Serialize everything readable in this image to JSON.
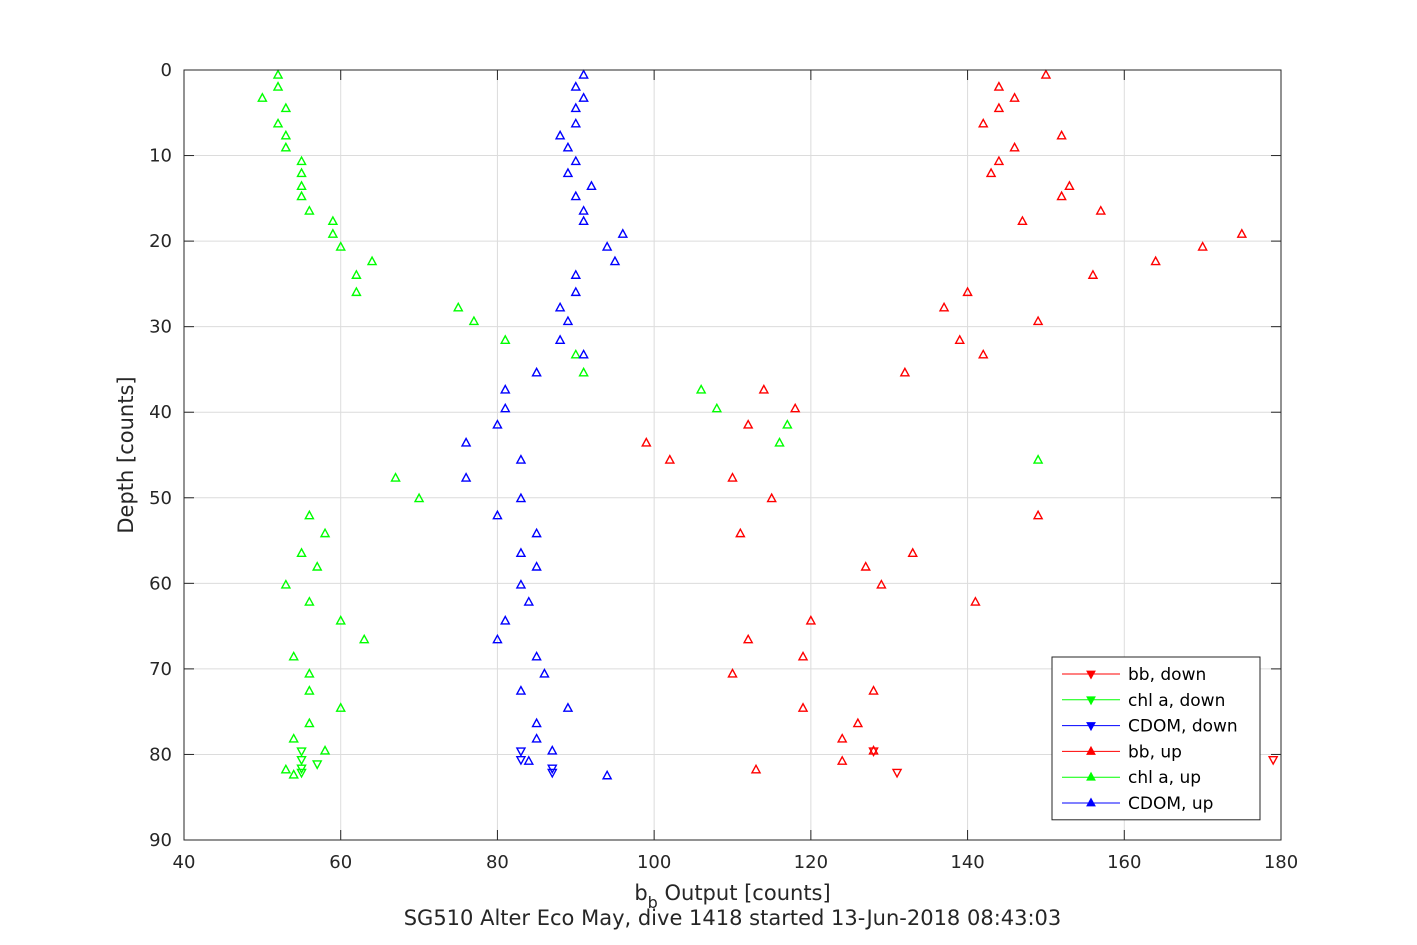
{
  "chart_data": {
    "type": "scatter",
    "xlabel_main": "b",
    "xlabel_sub": "b",
    "xlabel_rest": " Output [counts]",
    "ylabel": "Depth [counts]",
    "subtitle": "SG510 Alter Eco May, dive 1418 started 13-Jun-2018 08:43:03",
    "xlim": [
      40,
      180
    ],
    "ylim": [
      0,
      90
    ],
    "y_reversed": true,
    "xticks": [
      40,
      60,
      80,
      100,
      120,
      140,
      160,
      180
    ],
    "yticks": [
      0,
      10,
      20,
      30,
      40,
      50,
      60,
      70,
      80,
      90
    ],
    "grid": true,
    "legend_position": "bottom-right",
    "series": [
      {
        "name": "bb, down",
        "color": "#ff0000",
        "marker": "triangle-down",
        "points": [
          [
            128,
            79.6
          ],
          [
            131,
            82.1
          ],
          [
            179,
            80.6
          ]
        ]
      },
      {
        "name": "chl a, down",
        "color": "#00ff00",
        "marker": "triangle-down",
        "points": [
          [
            55,
            79.6
          ],
          [
            55,
            80.6
          ],
          [
            55,
            81.6
          ],
          [
            55,
            82.1
          ],
          [
            57,
            81.1
          ]
        ]
      },
      {
        "name": "CDOM, down",
        "color": "#0000ff",
        "marker": "triangle-down",
        "points": [
          [
            83,
            79.6
          ],
          [
            83,
            80.6
          ],
          [
            87,
            81.6
          ],
          [
            87,
            82.1
          ]
        ]
      },
      {
        "name": "bb, up",
        "color": "#ff0000",
        "marker": "triangle-up",
        "points": [
          [
            150,
            0.6
          ],
          [
            144,
            2.0
          ],
          [
            146,
            3.3
          ],
          [
            144,
            4.5
          ],
          [
            142,
            6.3
          ],
          [
            152,
            7.7
          ],
          [
            146,
            9.1
          ],
          [
            144,
            10.7
          ],
          [
            143,
            12.1
          ],
          [
            153,
            13.6
          ],
          [
            152,
            14.8
          ],
          [
            157,
            16.5
          ],
          [
            147,
            17.7
          ],
          [
            175,
            19.2
          ],
          [
            170,
            20.7
          ],
          [
            164,
            22.4
          ],
          [
            156,
            24.0
          ],
          [
            140,
            26.0
          ],
          [
            137,
            27.8
          ],
          [
            149,
            29.4
          ],
          [
            139,
            31.6
          ],
          [
            142,
            33.3
          ],
          [
            132,
            35.4
          ],
          [
            114,
            37.4
          ],
          [
            118,
            39.6
          ],
          [
            112,
            41.5
          ],
          [
            99,
            43.6
          ],
          [
            102,
            45.6
          ],
          [
            110,
            47.7
          ],
          [
            115,
            50.1
          ],
          [
            149,
            52.1
          ],
          [
            111,
            54.2
          ],
          [
            133,
            56.5
          ],
          [
            127,
            58.1
          ],
          [
            129,
            60.2
          ],
          [
            141,
            62.2
          ],
          [
            120,
            64.4
          ],
          [
            112,
            66.6
          ],
          [
            119,
            68.6
          ],
          [
            110,
            70.6
          ],
          [
            128,
            72.6
          ],
          [
            119,
            74.6
          ],
          [
            126,
            76.4
          ],
          [
            124,
            78.2
          ],
          [
            128,
            79.6
          ],
          [
            124,
            80.8
          ],
          [
            113,
            81.8
          ]
        ]
      },
      {
        "name": "chl a, up",
        "color": "#00ff00",
        "marker": "triangle-up",
        "points": [
          [
            52,
            0.6
          ],
          [
            52,
            2.0
          ],
          [
            50,
            3.3
          ],
          [
            53,
            4.5
          ],
          [
            52,
            6.3
          ],
          [
            53,
            7.7
          ],
          [
            53,
            9.1
          ],
          [
            55,
            10.7
          ],
          [
            55,
            12.1
          ],
          [
            55,
            13.6
          ],
          [
            55,
            14.8
          ],
          [
            56,
            16.5
          ],
          [
            59,
            17.7
          ],
          [
            59,
            19.2
          ],
          [
            60,
            20.7
          ],
          [
            64,
            22.4
          ],
          [
            62,
            24.0
          ],
          [
            62,
            26.0
          ],
          [
            75,
            27.8
          ],
          [
            77,
            29.4
          ],
          [
            81,
            31.6
          ],
          [
            90,
            33.3
          ],
          [
            91,
            35.4
          ],
          [
            106,
            37.4
          ],
          [
            108,
            39.6
          ],
          [
            117,
            41.5
          ],
          [
            116,
            43.6
          ],
          [
            149,
            45.6
          ],
          [
            67,
            47.7
          ],
          [
            70,
            50.1
          ],
          [
            56,
            52.1
          ],
          [
            58,
            54.2
          ],
          [
            55,
            56.5
          ],
          [
            57,
            58.1
          ],
          [
            53,
            60.2
          ],
          [
            56,
            62.2
          ],
          [
            60,
            64.4
          ],
          [
            63,
            66.6
          ],
          [
            54,
            68.6
          ],
          [
            56,
            70.6
          ],
          [
            56,
            72.6
          ],
          [
            60,
            74.6
          ],
          [
            56,
            76.4
          ],
          [
            54,
            78.2
          ],
          [
            58,
            79.6
          ],
          [
            53,
            81.8
          ],
          [
            54,
            82.4
          ]
        ]
      },
      {
        "name": "CDOM, up",
        "color": "#0000ff",
        "marker": "triangle-up",
        "points": [
          [
            91,
            0.6
          ],
          [
            90,
            2.0
          ],
          [
            91,
            3.3
          ],
          [
            90,
            4.5
          ],
          [
            90,
            6.3
          ],
          [
            88,
            7.7
          ],
          [
            89,
            9.1
          ],
          [
            90,
            10.7
          ],
          [
            89,
            12.1
          ],
          [
            92,
            13.6
          ],
          [
            90,
            14.8
          ],
          [
            91,
            16.5
          ],
          [
            91,
            17.7
          ],
          [
            96,
            19.2
          ],
          [
            94,
            20.7
          ],
          [
            95,
            22.4
          ],
          [
            90,
            24.0
          ],
          [
            90,
            26.0
          ],
          [
            88,
            27.8
          ],
          [
            89,
            29.4
          ],
          [
            88,
            31.6
          ],
          [
            91,
            33.3
          ],
          [
            85,
            35.4
          ],
          [
            81,
            37.4
          ],
          [
            81,
            39.6
          ],
          [
            80,
            41.5
          ],
          [
            76,
            43.6
          ],
          [
            83,
            45.6
          ],
          [
            76,
            47.7
          ],
          [
            83,
            50.1
          ],
          [
            80,
            52.1
          ],
          [
            85,
            54.2
          ],
          [
            83,
            56.5
          ],
          [
            85,
            58.1
          ],
          [
            83,
            60.2
          ],
          [
            84,
            62.2
          ],
          [
            81,
            64.4
          ],
          [
            80,
            66.6
          ],
          [
            85,
            68.6
          ],
          [
            86,
            70.6
          ],
          [
            83,
            72.6
          ],
          [
            89,
            74.6
          ],
          [
            85,
            76.4
          ],
          [
            85,
            78.2
          ],
          [
            87,
            79.6
          ],
          [
            84,
            80.8
          ],
          [
            94,
            82.5
          ]
        ]
      }
    ]
  }
}
